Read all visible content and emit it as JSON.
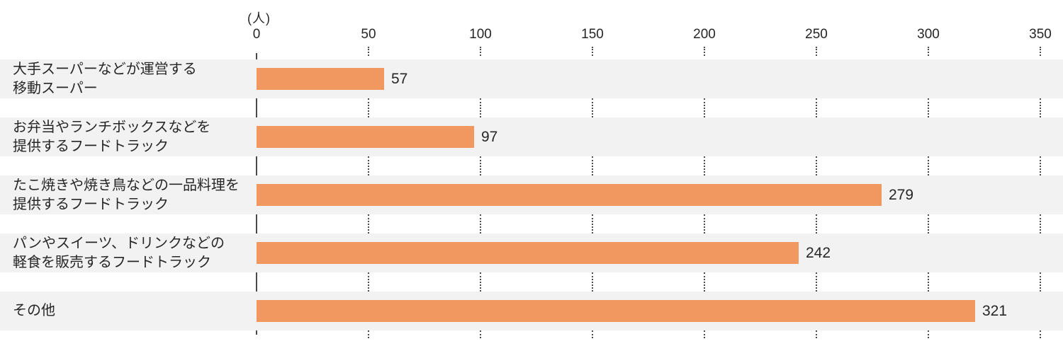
{
  "chart_data": {
    "type": "bar",
    "orientation": "horizontal",
    "title": "",
    "unit_label": "(人)",
    "categories": [
      [
        "大手スーパーなどが運営する",
        "移動スーパー"
      ],
      [
        "お弁当やランチボックスなどを",
        "提供するフードトラック"
      ],
      [
        "たこ焼きや焼き鳥などの一品料理を",
        "提供するフードトラック"
      ],
      [
        "パンやスイーツ、ドリンクなどの",
        "軽食を販売するフードトラック"
      ],
      [
        "その他"
      ]
    ],
    "values": [
      57,
      97,
      279,
      242,
      321
    ],
    "x_ticks": [
      0,
      50,
      100,
      150,
      200,
      250,
      300,
      350
    ],
    "xlim": [
      0,
      350
    ],
    "grid": "dotted-vertical-at-50",
    "legend_position": "none",
    "colors": {
      "bar": "#f0985f",
      "row_band": "#f2f2f2",
      "axis_line": "#4a4a4a",
      "grid_dots": "#4d4d4d",
      "text": "#262626"
    }
  }
}
